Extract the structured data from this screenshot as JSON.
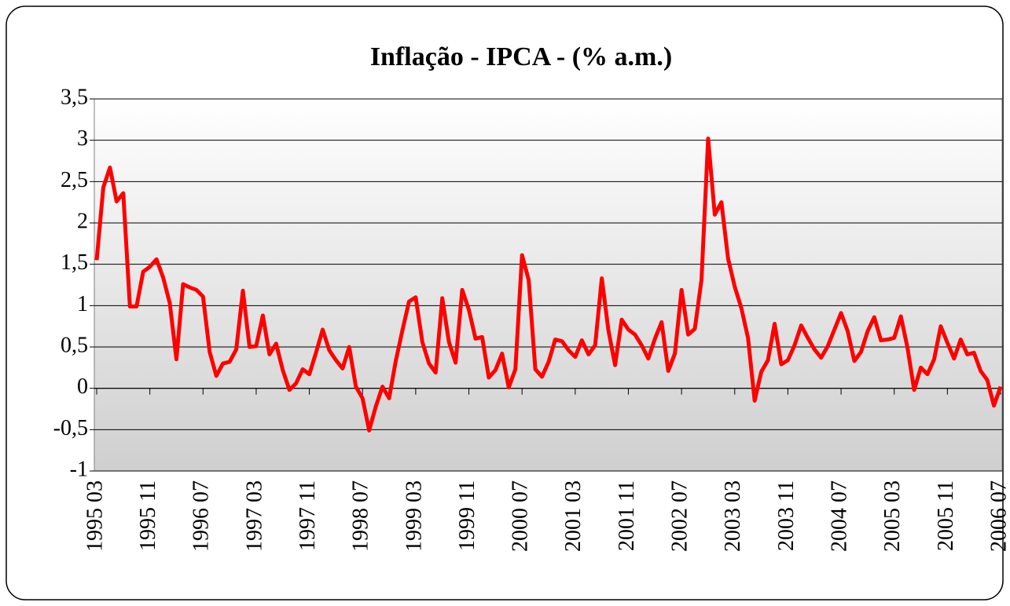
{
  "chart_data": {
    "type": "line",
    "title": "Inflação - IPCA - (% a.m.)",
    "categories": [
      "1995 03",
      null,
      null,
      null,
      null,
      null,
      null,
      null,
      "1995 11",
      null,
      null,
      null,
      null,
      null,
      null,
      null,
      "1996 07",
      null,
      null,
      null,
      null,
      null,
      null,
      null,
      "1997 03",
      null,
      null,
      null,
      null,
      null,
      null,
      null,
      "1997 11",
      null,
      null,
      null,
      null,
      null,
      null,
      null,
      "1998 07",
      null,
      null,
      null,
      null,
      null,
      null,
      null,
      "1999 03",
      null,
      null,
      null,
      null,
      null,
      null,
      null,
      "1999 11",
      null,
      null,
      null,
      null,
      null,
      null,
      null,
      "2000 07",
      null,
      null,
      null,
      null,
      null,
      null,
      null,
      "2001 03",
      null,
      null,
      null,
      null,
      null,
      null,
      null,
      "2001 11",
      null,
      null,
      null,
      null,
      null,
      null,
      null,
      "2002 07",
      null,
      null,
      null,
      null,
      null,
      null,
      null,
      "2003 03",
      null,
      null,
      null,
      null,
      null,
      null,
      null,
      "2003 11",
      null,
      null,
      null,
      null,
      null,
      null,
      null,
      "2004 07",
      null,
      null,
      null,
      null,
      null,
      null,
      null,
      "2005 03",
      null,
      null,
      null,
      null,
      null,
      null,
      null,
      "2005 11",
      null,
      null,
      null,
      null,
      null,
      null,
      null,
      "2006 07"
    ],
    "series": [
      {
        "color": "#ff0000",
        "values": [
          1.55,
          2.43,
          2.67,
          2.26,
          2.36,
          0.99,
          0.99,
          1.41,
          1.47,
          1.56,
          1.34,
          1.03,
          0.35,
          1.26,
          1.22,
          1.19,
          1.11,
          0.44,
          0.15,
          0.3,
          0.32,
          0.47,
          1.18,
          0.5,
          0.51,
          0.88,
          0.41,
          0.54,
          0.22,
          -0.02,
          0.06,
          0.23,
          0.17,
          0.43,
          0.71,
          0.46,
          0.34,
          0.24,
          0.5,
          0.02,
          -0.12,
          -0.51,
          -0.22,
          0.02,
          -0.12,
          0.33,
          0.7,
          1.05,
          1.1,
          0.56,
          0.3,
          0.19,
          1.09,
          0.56,
          0.31,
          1.19,
          0.95,
          0.6,
          0.62,
          0.13,
          0.22,
          0.42,
          0.01,
          0.23,
          1.61,
          1.31,
          0.23,
          0.14,
          0.32,
          0.59,
          0.57,
          0.46,
          0.38,
          0.58,
          0.41,
          0.52,
          1.33,
          0.7,
          0.28,
          0.83,
          0.71,
          0.65,
          0.52,
          0.36,
          0.6,
          0.8,
          0.21,
          0.42,
          1.19,
          0.65,
          0.72,
          1.31,
          3.02,
          2.1,
          2.25,
          1.57,
          1.23,
          0.97,
          0.61,
          -0.15,
          0.2,
          0.34,
          0.78,
          0.29,
          0.34,
          0.52,
          0.76,
          0.61,
          0.47,
          0.37,
          0.51,
          0.71,
          0.91,
          0.69,
          0.33,
          0.44,
          0.69,
          0.86,
          0.58,
          0.59,
          0.61,
          0.87,
          0.49,
          -0.02,
          0.25,
          0.17,
          0.35,
          0.75,
          0.55,
          0.36,
          0.59,
          0.41,
          0.43,
          0.21,
          0.1,
          -0.21,
          0.02
        ]
      }
    ],
    "ylim": [
      -1,
      3.5
    ],
    "yticks": [
      -1,
      {
        "value": -0.5,
        "label": "-0,5"
      },
      0,
      {
        "value": 0.5,
        "label": "0,5"
      },
      1,
      {
        "value": 1.5,
        "label": "1,5"
      },
      2,
      {
        "value": 2.5,
        "label": "2,5"
      },
      3,
      {
        "value": 3.5,
        "label": "3,5"
      }
    ],
    "grid": true
  }
}
